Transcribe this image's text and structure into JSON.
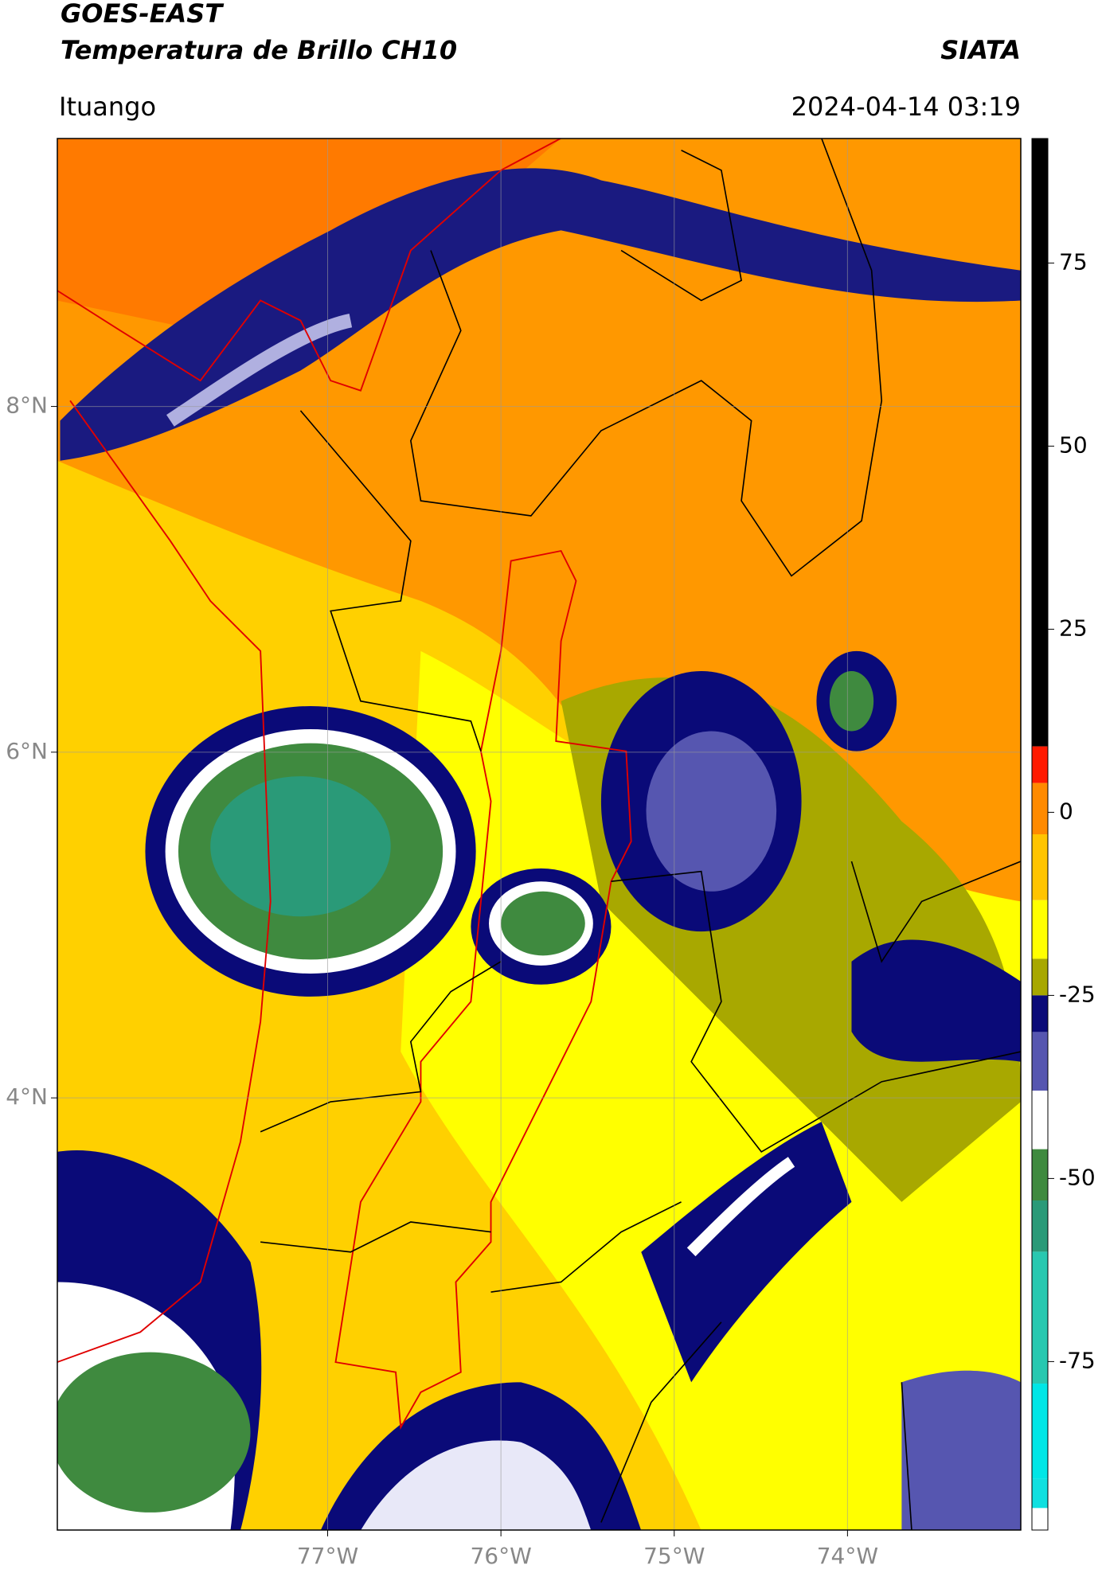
{
  "header": {
    "title": "GOES-EAST",
    "subtitle": "Temperatura de Brillo CH10",
    "brand": "SIATA",
    "location": "Ituango",
    "datetime": "2024-04-14 03:19"
  },
  "chart_data": {
    "type": "map",
    "xlim": [
      -78.56,
      -73.0
    ],
    "ylim": [
      1.5,
      9.55
    ],
    "xticks": [
      {
        "value": -77,
        "label": "77°W"
      },
      {
        "value": -76,
        "label": "76°W"
      },
      {
        "value": -75,
        "label": "75°W"
      },
      {
        "value": -74,
        "label": "74°W"
      }
    ],
    "yticks": [
      {
        "value": 8,
        "label": "8°N"
      },
      {
        "value": 6,
        "label": "6°N"
      },
      {
        "value": 4,
        "label": "4°N"
      }
    ],
    "grid": true,
    "colorbar": {
      "lim": [
        -98,
        92
      ],
      "ticks": [
        75,
        50,
        25,
        0,
        -25,
        -50,
        -75
      ],
      "levels": [
        92,
        9,
        4,
        -3,
        -12,
        -20,
        -25,
        -30,
        -38,
        -46,
        -53,
        -60,
        -78,
        -91,
        -95,
        -98
      ],
      "colors": [
        "#000000",
        "#ff1a00",
        "#ff8a00",
        "#ffc400",
        "#ffff00",
        "#a8a800",
        "#0a0a78",
        "#5656b0",
        "#ffffff",
        "#3f8a3f",
        "#2a9a78",
        "#28c8b0",
        "#00e6e6",
        "#10e0e0",
        "#ffffff"
      ]
    }
  }
}
